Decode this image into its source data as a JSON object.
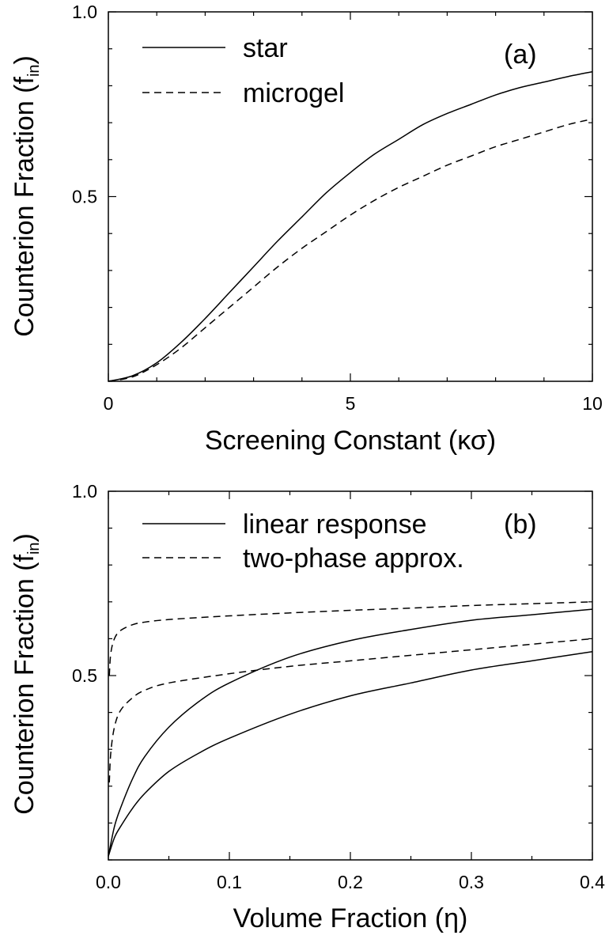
{
  "chart_data": [
    {
      "type": "line",
      "panel_label": "(a)",
      "xlabel": "Screening Constant (κσ)",
      "ylabel": "Counterion Fraction (f",
      "ylabel_sub": "in",
      "ylabel_close": ")",
      "xlim": [
        0,
        10
      ],
      "ylim": [
        0,
        1.0
      ],
      "xticks": [
        0,
        5,
        10
      ],
      "xtick_labels": [
        "0",
        "5",
        "10"
      ],
      "yticks": [
        0.5,
        1.0
      ],
      "ytick_labels": [
        "0.5",
        "1.0"
      ],
      "grid": false,
      "legend_position": "top-left",
      "series": [
        {
          "name": "star",
          "style": "solid",
          "x": [
            0,
            0.5,
            1,
            1.5,
            2,
            2.5,
            3,
            3.5,
            4,
            4.5,
            5,
            5.5,
            6,
            6.5,
            7,
            7.5,
            8,
            8.5,
            9,
            9.5,
            10
          ],
          "y": [
            0,
            0.015,
            0.05,
            0.105,
            0.17,
            0.24,
            0.31,
            0.38,
            0.445,
            0.51,
            0.565,
            0.615,
            0.655,
            0.695,
            0.725,
            0.75,
            0.775,
            0.795,
            0.81,
            0.825,
            0.838
          ]
        },
        {
          "name": "microgel",
          "style": "dashed",
          "x": [
            0,
            0.5,
            1,
            1.5,
            2,
            2.5,
            3,
            3.5,
            4,
            4.5,
            5,
            5.5,
            6,
            6.5,
            7,
            7.5,
            8,
            8.5,
            9,
            9.5,
            10
          ],
          "y": [
            0,
            0.012,
            0.045,
            0.09,
            0.145,
            0.2,
            0.255,
            0.31,
            0.36,
            0.405,
            0.45,
            0.49,
            0.525,
            0.555,
            0.585,
            0.61,
            0.635,
            0.655,
            0.675,
            0.695,
            0.71
          ]
        }
      ]
    },
    {
      "type": "line",
      "panel_label": "(b)",
      "xlabel": "Volume Fraction (η)",
      "ylabel": "Counterion Fraction (f",
      "ylabel_sub": "in",
      "ylabel_close": ")",
      "xlim": [
        0,
        0.4
      ],
      "ylim": [
        0,
        1.0
      ],
      "xticks": [
        0,
        0.1,
        0.2,
        0.3,
        0.4
      ],
      "xtick_labels": [
        "0.0",
        "0.1",
        "0.2",
        "0.3",
        "0.4"
      ],
      "yticks": [
        0.5,
        1.0
      ],
      "ytick_labels": [
        "0.5",
        "1.0"
      ],
      "grid": false,
      "legend_position": "top-left",
      "series": [
        {
          "name": "linear response",
          "style": "solid",
          "x": [
            0,
            0.005,
            0.01,
            0.02,
            0.03,
            0.05,
            0.075,
            0.1,
            0.15,
            0.2,
            0.25,
            0.3,
            0.35,
            0.4
          ],
          "y": [
            0.01,
            0.09,
            0.14,
            0.22,
            0.28,
            0.36,
            0.43,
            0.48,
            0.55,
            0.595,
            0.625,
            0.65,
            0.665,
            0.68
          ]
        },
        {
          "name": "linear response",
          "style": "solid",
          "x": [
            0,
            0.005,
            0.01,
            0.02,
            0.03,
            0.05,
            0.075,
            0.1,
            0.15,
            0.2,
            0.25,
            0.3,
            0.35,
            0.4
          ],
          "y": [
            0.01,
            0.06,
            0.09,
            0.14,
            0.18,
            0.24,
            0.29,
            0.33,
            0.395,
            0.445,
            0.48,
            0.515,
            0.54,
            0.565
          ]
        },
        {
          "name": "two-phase approx.",
          "style": "dashed",
          "x": [
            0.0008,
            0.002,
            0.005,
            0.01,
            0.02,
            0.03,
            0.05,
            0.1,
            0.15,
            0.2,
            0.25,
            0.3,
            0.35,
            0.4
          ],
          "y": [
            0.5,
            0.56,
            0.6,
            0.622,
            0.638,
            0.645,
            0.652,
            0.662,
            0.67,
            0.677,
            0.683,
            0.69,
            0.695,
            0.7
          ]
        },
        {
          "name": "two-phase approx.",
          "style": "dashed",
          "x": [
            0.0008,
            0.002,
            0.005,
            0.01,
            0.02,
            0.03,
            0.05,
            0.1,
            0.15,
            0.2,
            0.25,
            0.3,
            0.35,
            0.4
          ],
          "y": [
            0.21,
            0.29,
            0.36,
            0.405,
            0.44,
            0.46,
            0.48,
            0.505,
            0.525,
            0.54,
            0.555,
            0.57,
            0.585,
            0.6
          ]
        }
      ]
    }
  ]
}
